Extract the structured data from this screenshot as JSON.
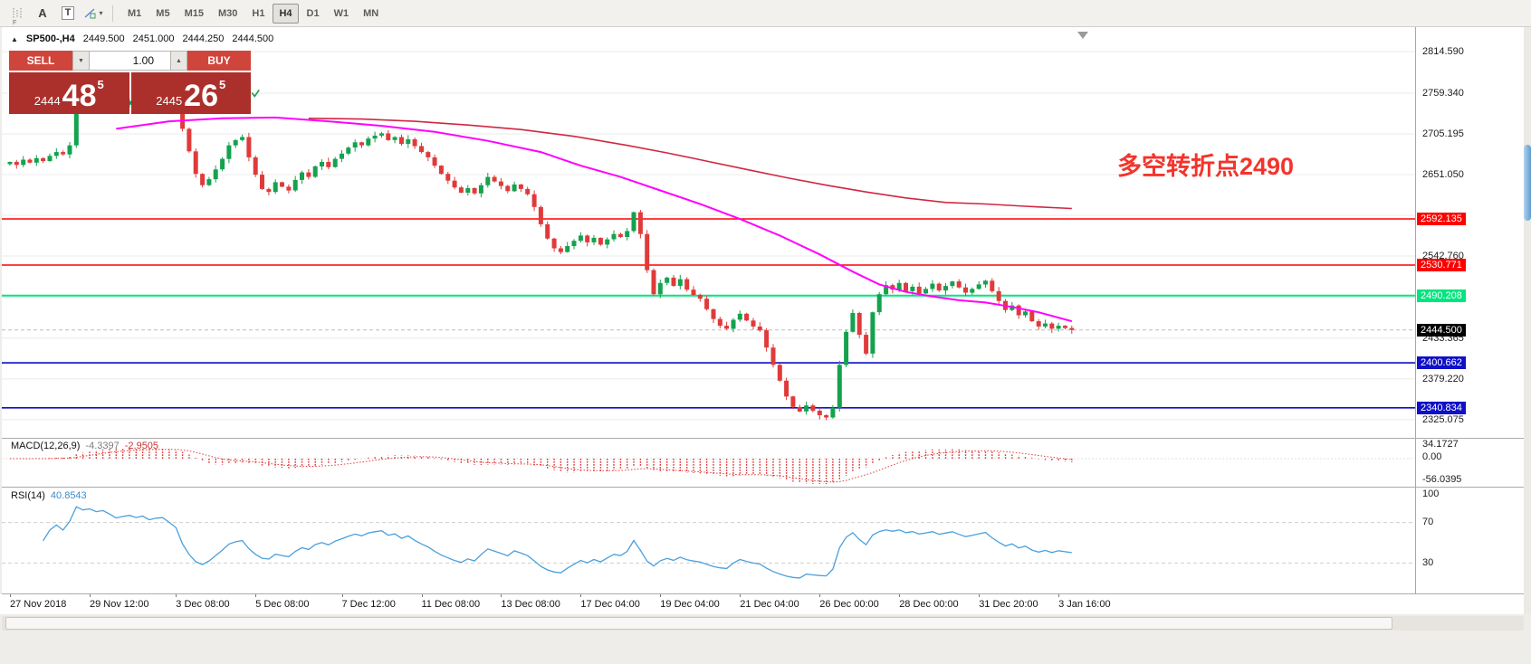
{
  "toolbar": {
    "hint_f": "F",
    "letter_a": "A",
    "letter_t": "T",
    "timeframes": [
      "M1",
      "M5",
      "M15",
      "M30",
      "H1",
      "H4",
      "D1",
      "W1",
      "MN"
    ],
    "active_timeframe": "H4"
  },
  "icons": {
    "collapse_arrow": "▲",
    "caret_down": "▼",
    "caret_up": "▲",
    "dropdown_caret": "▾"
  },
  "quote": {
    "symbol": "SP500-,H4",
    "open": "2449.500",
    "high": "2451.000",
    "low": "2444.250",
    "close": "2444.500"
  },
  "trade_panel": {
    "sell_label": "SELL",
    "buy_label": "BUY",
    "volume": "1.00",
    "sell_price": {
      "base": "2444",
      "big": "48",
      "sup": "5"
    },
    "buy_price": {
      "base": "2445",
      "big": "26",
      "sup": "5"
    }
  },
  "annotation": {
    "text": "多空转折点2490",
    "color": "#f3342c"
  },
  "price_axis": {
    "ticks": [
      {
        "label": "2814.590",
        "value": 2814.59
      },
      {
        "label": "2759.340",
        "value": 2759.34
      },
      {
        "label": "2705.195",
        "value": 2705.195
      },
      {
        "label": "2651.050",
        "value": 2651.05
      },
      {
        "label": "2542.760",
        "value": 2542.76
      },
      {
        "label": "2433.365",
        "value": 2433.365
      },
      {
        "label": "2379.220",
        "value": 2379.22
      },
      {
        "label": "2325.075",
        "value": 2325.075
      }
    ],
    "grid_values": [
      2814.59,
      2759.34,
      2705.195,
      2651.05,
      2596.905,
      2542.76,
      2488.06,
      2433.365,
      2379.22,
      2325.075
    ],
    "hlines": [
      {
        "label": "2592.135",
        "value": 2592.135,
        "color": "#fe0000",
        "width": 1.4
      },
      {
        "label": "2530.771",
        "value": 2530.771,
        "color": "#fe0000",
        "width": 1.4
      },
      {
        "label": "2490.208",
        "value": 2490.208,
        "color": "#00e67e",
        "width": 2
      },
      {
        "label": "2400.662",
        "value": 2400.662,
        "color": "#0f0fc8",
        "width": 1.6
      },
      {
        "label": "2340.834",
        "value": 2340.834,
        "color": "#0f0fc8",
        "width": 1.6
      }
    ],
    "current": {
      "label": "2444.500",
      "value": 2444.5,
      "color": "#000000"
    }
  },
  "time_axis": {
    "labels": [
      {
        "text": "27 Nov 2018",
        "bar": 0
      },
      {
        "text": "29 Nov 12:00",
        "bar": 12
      },
      {
        "text": "3 Dec 08:00",
        "bar": 25
      },
      {
        "text": "5 Dec 08:00",
        "bar": 37
      },
      {
        "text": "7 Dec 12:00",
        "bar": 50
      },
      {
        "text": "11 Dec 08:00",
        "bar": 62
      },
      {
        "text": "13 Dec 08:00",
        "bar": 74
      },
      {
        "text": "17 Dec 04:00",
        "bar": 86
      },
      {
        "text": "19 Dec 04:00",
        "bar": 98
      },
      {
        "text": "21 Dec 04:00",
        "bar": 110
      },
      {
        "text": "26 Dec 00:00",
        "bar": 122
      },
      {
        "text": "28 Dec 00:00",
        "bar": 134
      },
      {
        "text": "31 Dec 20:00",
        "bar": 146
      },
      {
        "text": "3 Jan 16:00",
        "bar": 158
      }
    ]
  },
  "indicators": {
    "macd": {
      "label": "MACD(12,26,9)",
      "value_main": "-4.3397",
      "value_signal": "-2.9505",
      "scale_labels": [
        "34.1727",
        "0.00",
        "-56.0395"
      ],
      "fast": 12,
      "slow": 26,
      "signal": 9,
      "color": "#e23b3b"
    },
    "rsi": {
      "label": "RSI(14)",
      "value": "40.8543",
      "scale_labels": [
        "100",
        "70",
        "30"
      ],
      "levels": [
        70,
        30
      ],
      "period": 14,
      "color": "#4aa0dc"
    }
  },
  "chart_data": {
    "type": "candlestick",
    "symbol": "SP500-",
    "timeframe": "H4",
    "x_range": [
      "27 Nov 2018",
      "3 Jan 16:00"
    ],
    "y_range": [
      2305,
      2845
    ],
    "first_open": 2665,
    "closes": [
      2668,
      2664,
      2671,
      2667,
      2673,
      2669,
      2676,
      2681,
      2678,
      2690,
      2742,
      2738,
      2745,
      2741,
      2748,
      2743,
      2737,
      2744,
      2749,
      2746,
      2752,
      2747,
      2753,
      2755,
      2749,
      2742,
      2712,
      2682,
      2652,
      2637,
      2645,
      2658,
      2672,
      2690,
      2697,
      2701,
      2674,
      2651,
      2632,
      2628,
      2641,
      2635,
      2630,
      2644,
      2654,
      2648,
      2662,
      2668,
      2661,
      2672,
      2679,
      2687,
      2694,
      2690,
      2699,
      2703,
      2706,
      2697,
      2701,
      2692,
      2698,
      2689,
      2681,
      2674,
      2663,
      2652,
      2643,
      2634,
      2627,
      2633,
      2626,
      2637,
      2648,
      2642,
      2636,
      2629,
      2638,
      2632,
      2625,
      2608,
      2585,
      2566,
      2553,
      2548,
      2556,
      2563,
      2570,
      2561,
      2567,
      2558,
      2565,
      2572,
      2568,
      2576,
      2601,
      2572,
      2524,
      2492,
      2507,
      2514,
      2503,
      2512,
      2498,
      2491,
      2486,
      2472,
      2459,
      2450,
      2446,
      2458,
      2466,
      2457,
      2449,
      2444,
      2421,
      2398,
      2377,
      2356,
      2342,
      2336,
      2344,
      2337,
      2331,
      2328,
      2341,
      2398,
      2442,
      2467,
      2438,
      2413,
      2468,
      2492,
      2504,
      2498,
      2507,
      2496,
      2502,
      2493,
      2499,
      2506,
      2497,
      2503,
      2509,
      2501,
      2494,
      2499,
      2505,
      2510,
      2496,
      2483,
      2471,
      2477,
      2464,
      2469,
      2456,
      2449,
      2453,
      2446,
      2450,
      2447,
      2444.5
    ],
    "bull_color": "#14a24f",
    "bear_color": "#e03a3a",
    "ma_fast": {
      "label": "moving average fast",
      "color": "#ff00ff",
      "points": [
        [
          16,
          2712
        ],
        [
          24,
          2722
        ],
        [
          32,
          2726
        ],
        [
          40,
          2727
        ],
        [
          48,
          2722
        ],
        [
          56,
          2716
        ],
        [
          64,
          2708
        ],
        [
          72,
          2696
        ],
        [
          80,
          2681
        ],
        [
          86,
          2663
        ],
        [
          92,
          2648
        ],
        [
          98,
          2630
        ],
        [
          104,
          2612
        ],
        [
          110,
          2592
        ],
        [
          116,
          2570
        ],
        [
          122,
          2545
        ],
        [
          127,
          2522
        ],
        [
          131,
          2505
        ],
        [
          135,
          2495
        ],
        [
          139,
          2489
        ],
        [
          143,
          2484
        ],
        [
          147,
          2481
        ],
        [
          151,
          2475
        ],
        [
          155,
          2468
        ],
        [
          160,
          2456
        ]
      ]
    },
    "ma_slow": {
      "label": "moving average slow",
      "color": "#cf2743",
      "points": [
        [
          45,
          2726
        ],
        [
          53,
          2725
        ],
        [
          61,
          2722
        ],
        [
          69,
          2717
        ],
        [
          77,
          2711
        ],
        [
          85,
          2702
        ],
        [
          93,
          2690
        ],
        [
          99,
          2680
        ],
        [
          105,
          2669
        ],
        [
          111,
          2658
        ],
        [
          117,
          2647
        ],
        [
          123,
          2637
        ],
        [
          129,
          2628
        ],
        [
          135,
          2620
        ],
        [
          141,
          2614
        ],
        [
          147,
          2612
        ],
        [
          153,
          2609
        ],
        [
          160,
          2606
        ]
      ]
    },
    "markers": [
      {
        "bar": 32,
        "price": 2763
      },
      {
        "bar": 37,
        "price": 2760
      }
    ]
  }
}
